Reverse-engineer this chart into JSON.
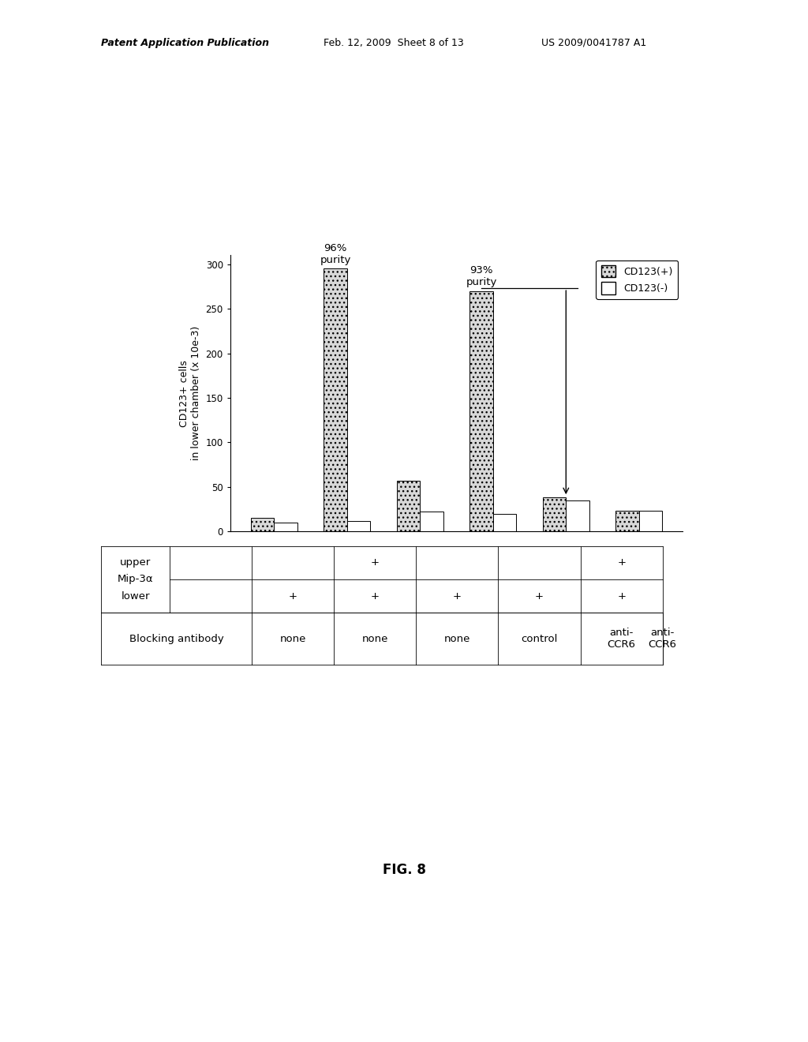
{
  "cd123pos": [
    15,
    295,
    57,
    270,
    38,
    23
  ],
  "cd123neg": [
    10,
    12,
    22,
    20,
    35,
    23
  ],
  "ylim": [
    0,
    310
  ],
  "yticks": [
    0,
    50,
    100,
    150,
    200,
    250,
    300
  ],
  "ylabel": "CD123+ cells\nin lower chamber (x 10e-3)",
  "legend_cd123pos": "CD123(+)",
  "legend_cd123neg": "CD123(-)",
  "header_left": "Patent Application Publication",
  "header_mid": "Feb. 12, 2009  Sheet 8 of 13",
  "header_right": "US 2009/0041787 A1",
  "fig_label": "FIG. 8",
  "table_upper": [
    "upper",
    "",
    "",
    "+",
    "",
    "",
    "+"
  ],
  "table_lower": [
    "lower",
    "",
    "+",
    "+",
    "+",
    "+",
    "+"
  ],
  "table_mip3a": "Mip-3α",
  "table_blocking": [
    "Blocking antibody",
    "none",
    "none",
    "none",
    "control",
    "anti-\nCCR6",
    "anti-\nCCR6"
  ]
}
